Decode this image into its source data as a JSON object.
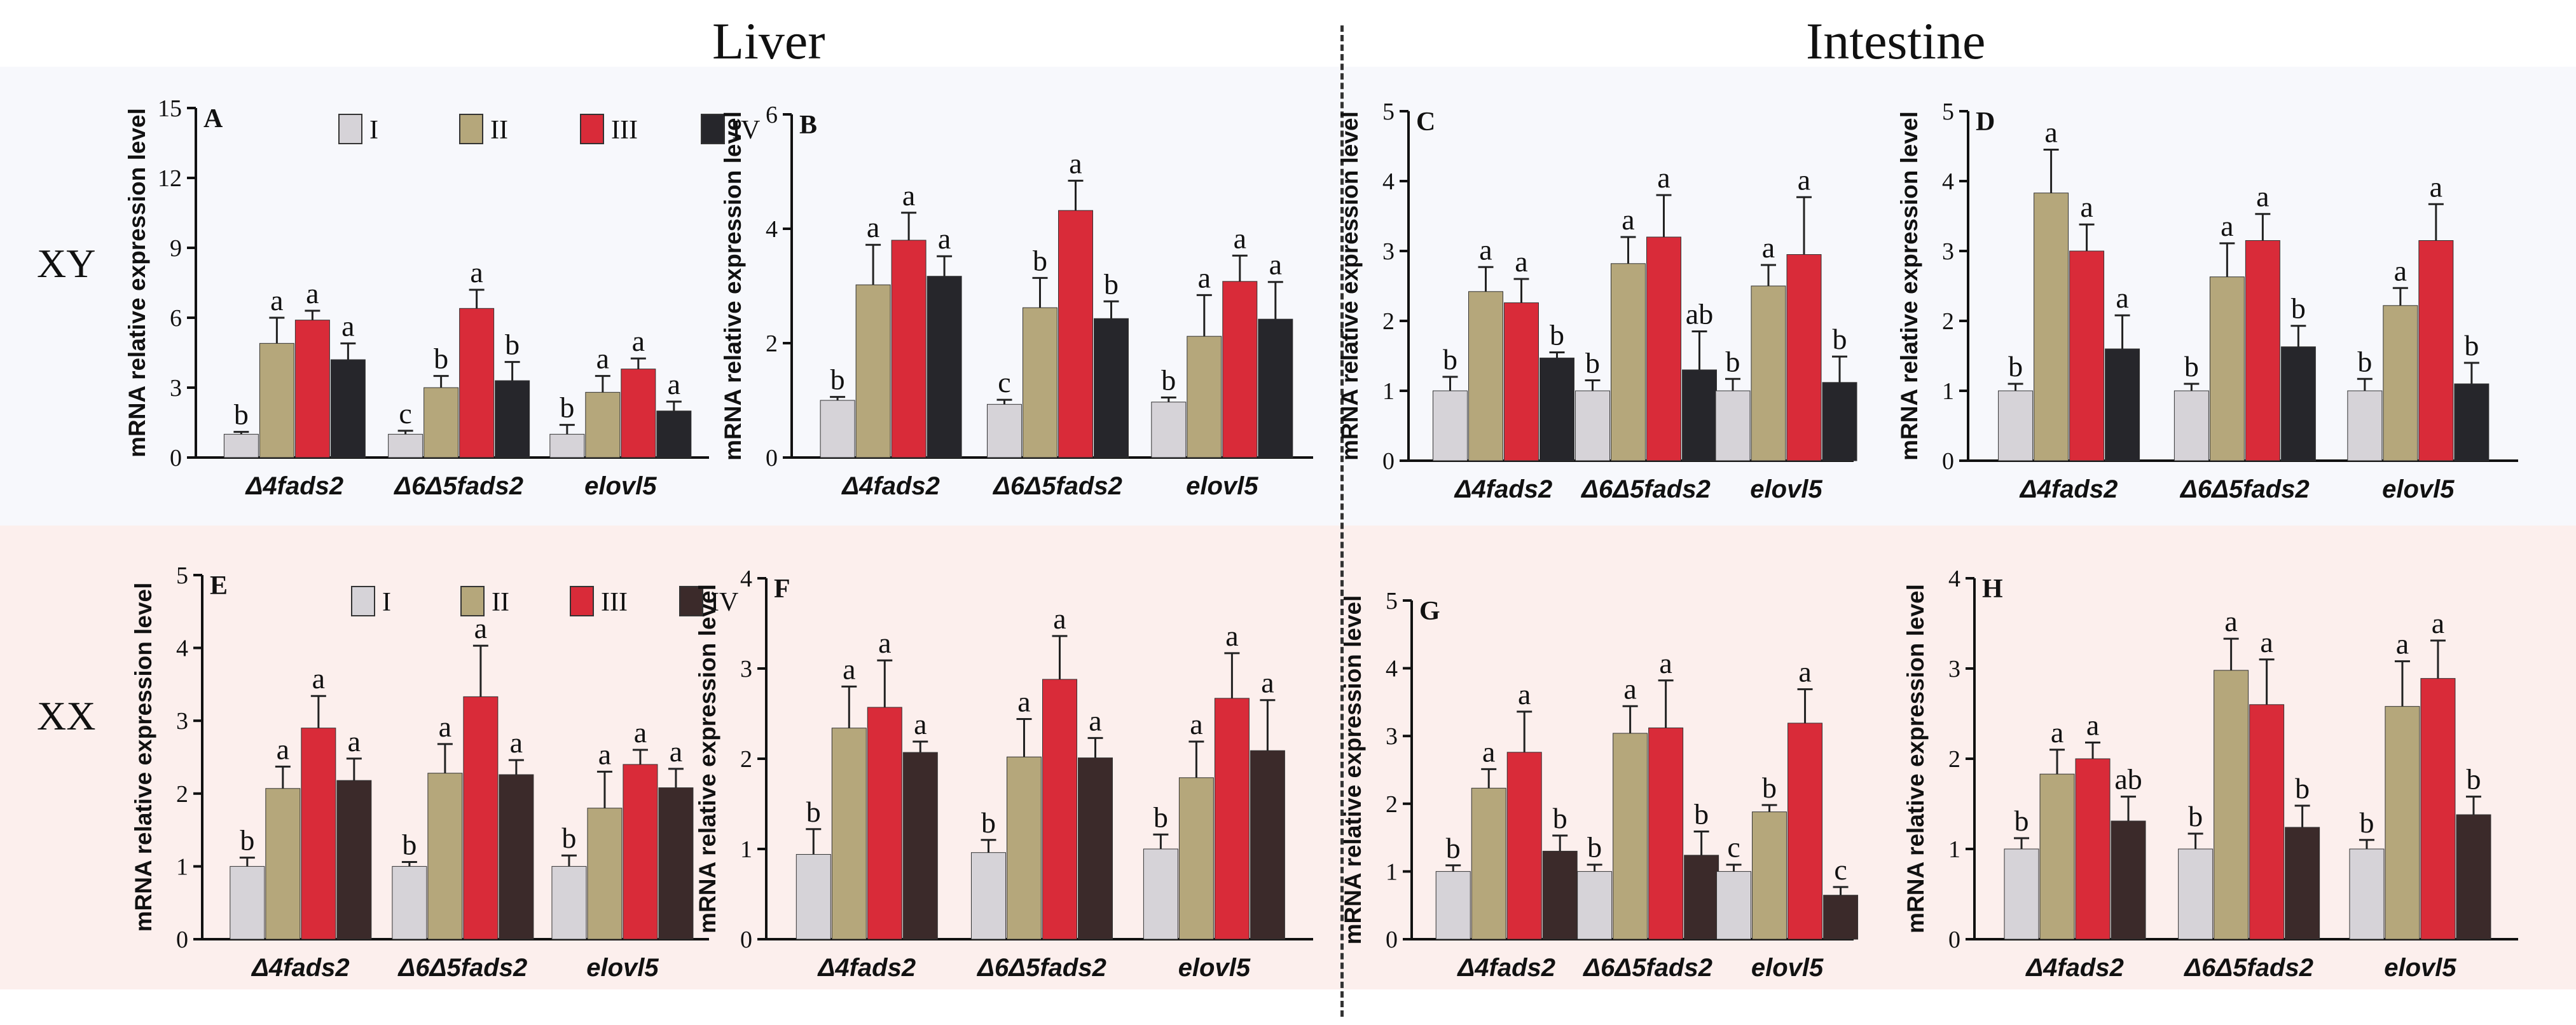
{
  "headings": {
    "liver": "Liver",
    "intestine": "Intestine"
  },
  "rows": {
    "xy": "XY",
    "xx": "XX"
  },
  "legend_labels": [
    "I",
    "II",
    "III",
    "IV"
  ],
  "colors": {
    "I": "#d6d3d8",
    "II": "#b5a77b",
    "III": "#d92b39",
    "IV_xy": "#26262b",
    "IV_xx": "#3b2a2a",
    "xy_band": "#f7f8fc",
    "xx_band": "#fcefed"
  },
  "chart_data": [
    {
      "id": "A",
      "type": "bar",
      "ylabel": "mRNA relative expression level",
      "ylim": [
        0,
        15
      ],
      "yticks": [
        0,
        3,
        6,
        9,
        12,
        15
      ],
      "categories": [
        "Δ4fads2",
        "Δ6Δ5fads2",
        "elovl5"
      ],
      "legend": "top",
      "row": "xy",
      "series": [
        {
          "name": "I",
          "values": [
            1.0,
            1.0,
            1.0
          ],
          "errors": [
            0.1,
            0.15,
            0.4
          ],
          "letters": [
            "b",
            "c",
            "b"
          ]
        },
        {
          "name": "II",
          "values": [
            4.9,
            3.0,
            2.8
          ],
          "errors": [
            1.1,
            0.5,
            0.7
          ],
          "letters": [
            "a",
            "b",
            "a"
          ]
        },
        {
          "name": "III",
          "values": [
            5.9,
            6.4,
            3.8
          ],
          "errors": [
            0.4,
            0.8,
            0.45
          ],
          "letters": [
            "a",
            "a",
            "a"
          ]
        },
        {
          "name": "IV",
          "values": [
            4.2,
            3.3,
            2.0
          ],
          "errors": [
            0.7,
            0.8,
            0.4
          ],
          "letters": [
            "a",
            "b",
            "a"
          ]
        }
      ]
    },
    {
      "id": "B",
      "type": "bar",
      "ylabel": "mRNA relative expression level",
      "ylim": [
        0,
        6
      ],
      "yticks": [
        0,
        2,
        4,
        6
      ],
      "categories": [
        "Δ4fads2",
        "Δ6Δ5fads2",
        "elovl5"
      ],
      "legend": "none",
      "row": "xy",
      "series": [
        {
          "name": "I",
          "values": [
            1.0,
            0.93,
            0.97
          ],
          "errors": [
            0.06,
            0.08,
            0.08
          ],
          "letters": [
            "b",
            "c",
            "b"
          ]
        },
        {
          "name": "II",
          "values": [
            3.02,
            2.62,
            2.12
          ],
          "errors": [
            0.7,
            0.52,
            0.72
          ],
          "letters": [
            "a",
            "b",
            "a"
          ]
        },
        {
          "name": "III",
          "values": [
            3.8,
            4.32,
            3.08
          ],
          "errors": [
            0.48,
            0.52,
            0.45
          ],
          "letters": [
            "a",
            "a",
            "a"
          ]
        },
        {
          "name": "IV",
          "values": [
            3.17,
            2.43,
            2.42
          ],
          "errors": [
            0.35,
            0.3,
            0.65
          ],
          "letters": [
            "a",
            "b",
            "a"
          ]
        }
      ]
    },
    {
      "id": "C",
      "type": "bar",
      "ylabel": "mRNA relative expression level",
      "ylim": [
        0,
        5
      ],
      "yticks": [
        0,
        1,
        2,
        3,
        4,
        5
      ],
      "categories": [
        "Δ4fads2",
        "Δ6Δ5fads2",
        "elovl5"
      ],
      "legend": "none",
      "row": "xy",
      "series": [
        {
          "name": "I",
          "values": [
            1.0,
            1.0,
            1.0
          ],
          "errors": [
            0.2,
            0.15,
            0.17
          ],
          "letters": [
            "b",
            "b",
            "b"
          ]
        },
        {
          "name": "II",
          "values": [
            2.42,
            2.82,
            2.5
          ],
          "errors": [
            0.35,
            0.38,
            0.3
          ],
          "letters": [
            "a",
            "a",
            "a"
          ]
        },
        {
          "name": "III",
          "values": [
            2.26,
            3.2,
            2.95
          ],
          "errors": [
            0.34,
            0.6,
            0.82
          ],
          "letters": [
            "a",
            "a",
            "a"
          ]
        },
        {
          "name": "IV",
          "values": [
            1.47,
            1.3,
            1.12
          ],
          "errors": [
            0.08,
            0.55,
            0.37
          ],
          "letters": [
            "b",
            "ab",
            "b"
          ]
        }
      ]
    },
    {
      "id": "D",
      "type": "bar",
      "ylabel": "mRNA relative expression level",
      "ylim": [
        0,
        5
      ],
      "yticks": [
        0,
        1,
        2,
        3,
        4,
        5
      ],
      "categories": [
        "Δ4fads2",
        "Δ6Δ5fads2",
        "elovl5"
      ],
      "legend": "none",
      "row": "xy",
      "series": [
        {
          "name": "I",
          "values": [
            1.0,
            1.0,
            1.0
          ],
          "errors": [
            0.1,
            0.1,
            0.17
          ],
          "letters": [
            "b",
            "b",
            "b"
          ]
        },
        {
          "name": "II",
          "values": [
            3.83,
            2.63,
            2.22
          ],
          "errors": [
            0.62,
            0.48,
            0.25
          ],
          "letters": [
            "a",
            "a",
            "a"
          ]
        },
        {
          "name": "III",
          "values": [
            3.0,
            3.15,
            3.15
          ],
          "errors": [
            0.38,
            0.38,
            0.52
          ],
          "letters": [
            "a",
            "a",
            "a"
          ]
        },
        {
          "name": "IV",
          "values": [
            1.6,
            1.63,
            1.1
          ],
          "errors": [
            0.48,
            0.3,
            0.3
          ],
          "letters": [
            "a",
            "b",
            "b"
          ]
        }
      ]
    },
    {
      "id": "E",
      "type": "bar",
      "ylabel": "mRNA relative expression level",
      "ylim": [
        0,
        5
      ],
      "yticks": [
        0,
        1,
        2,
        3,
        4,
        5
      ],
      "categories": [
        "Δ4fads2",
        "Δ6Δ5fads2",
        "elovl5"
      ],
      "legend": "top",
      "row": "xx",
      "series": [
        {
          "name": "I",
          "values": [
            1.0,
            1.0,
            1.0
          ],
          "errors": [
            0.12,
            0.06,
            0.15
          ],
          "letters": [
            "b",
            "b",
            "b"
          ]
        },
        {
          "name": "II",
          "values": [
            2.07,
            2.28,
            1.8
          ],
          "errors": [
            0.3,
            0.4,
            0.5
          ],
          "letters": [
            "a",
            "a",
            "a"
          ]
        },
        {
          "name": "III",
          "values": [
            2.9,
            3.33,
            2.4
          ],
          "errors": [
            0.44,
            0.7,
            0.2
          ],
          "letters": [
            "a",
            "a",
            "a"
          ]
        },
        {
          "name": "IV",
          "values": [
            2.18,
            2.26,
            2.08
          ],
          "errors": [
            0.3,
            0.2,
            0.26
          ],
          "letters": [
            "a",
            "a",
            "a"
          ]
        }
      ]
    },
    {
      "id": "F",
      "type": "bar",
      "ylabel": "mRNA relative expression level",
      "ylim": [
        0,
        4
      ],
      "yticks": [
        0,
        1,
        2,
        3,
        4
      ],
      "categories": [
        "Δ4fads2",
        "Δ6Δ5fads2",
        "elovl5"
      ],
      "legend": "none",
      "row": "xx",
      "series": [
        {
          "name": "I",
          "values": [
            0.94,
            0.96,
            1.0
          ],
          "errors": [
            0.28,
            0.14,
            0.16
          ],
          "letters": [
            "b",
            "b",
            "b"
          ]
        },
        {
          "name": "II",
          "values": [
            2.34,
            2.02,
            1.79
          ],
          "errors": [
            0.46,
            0.42,
            0.4
          ],
          "letters": [
            "a",
            "a",
            "a"
          ]
        },
        {
          "name": "III",
          "values": [
            2.57,
            2.88,
            2.67
          ],
          "errors": [
            0.52,
            0.48,
            0.5
          ],
          "letters": [
            "a",
            "a",
            "a"
          ]
        },
        {
          "name": "IV",
          "values": [
            2.07,
            2.01,
            2.09
          ],
          "errors": [
            0.12,
            0.22,
            0.56
          ],
          "letters": [
            "a",
            "a",
            "a"
          ]
        }
      ]
    },
    {
      "id": "G",
      "type": "bar",
      "ylabel": "mRNA relative expression level",
      "ylim": [
        0,
        5
      ],
      "yticks": [
        0,
        1,
        2,
        3,
        4,
        5
      ],
      "categories": [
        "Δ4fads2",
        "Δ6Δ5fads2",
        "elovl5"
      ],
      "legend": "none",
      "row": "xx",
      "series": [
        {
          "name": "I",
          "values": [
            1.0,
            1.0,
            1.0
          ],
          "errors": [
            0.09,
            0.1,
            0.1
          ],
          "letters": [
            "b",
            "b",
            "c"
          ]
        },
        {
          "name": "II",
          "values": [
            2.23,
            3.04,
            1.88
          ],
          "errors": [
            0.28,
            0.4,
            0.1
          ],
          "letters": [
            "a",
            "a",
            "b"
          ]
        },
        {
          "name": "III",
          "values": [
            2.76,
            3.12,
            3.19
          ],
          "errors": [
            0.6,
            0.7,
            0.5
          ],
          "letters": [
            "a",
            "a",
            "a"
          ]
        },
        {
          "name": "IV",
          "values": [
            1.3,
            1.24,
            0.65
          ],
          "errors": [
            0.23,
            0.35,
            0.12
          ],
          "letters": [
            "b",
            "b",
            "c"
          ]
        }
      ]
    },
    {
      "id": "H",
      "type": "bar",
      "ylabel": "mRNA relative expression level",
      "ylim": [
        0,
        4
      ],
      "yticks": [
        0,
        1,
        2,
        3,
        4
      ],
      "categories": [
        "Δ4fads2",
        "Δ6Δ5fads2",
        "elovl5"
      ],
      "legend": "none",
      "row": "xx",
      "series": [
        {
          "name": "I",
          "values": [
            1.0,
            1.0,
            1.0
          ],
          "errors": [
            0.12,
            0.17,
            0.1
          ],
          "letters": [
            "b",
            "b",
            "b"
          ]
        },
        {
          "name": "II",
          "values": [
            1.83,
            2.98,
            2.58
          ],
          "errors": [
            0.27,
            0.35,
            0.5
          ],
          "letters": [
            "a",
            "a",
            "a"
          ]
        },
        {
          "name": "III",
          "values": [
            2.0,
            2.6,
            2.89
          ],
          "errors": [
            0.18,
            0.5,
            0.42
          ],
          "letters": [
            "a",
            "a",
            "a"
          ]
        },
        {
          "name": "IV",
          "values": [
            1.31,
            1.24,
            1.38
          ],
          "errors": [
            0.27,
            0.24,
            0.2
          ],
          "letters": [
            "ab",
            "b",
            "b"
          ]
        }
      ]
    }
  ]
}
